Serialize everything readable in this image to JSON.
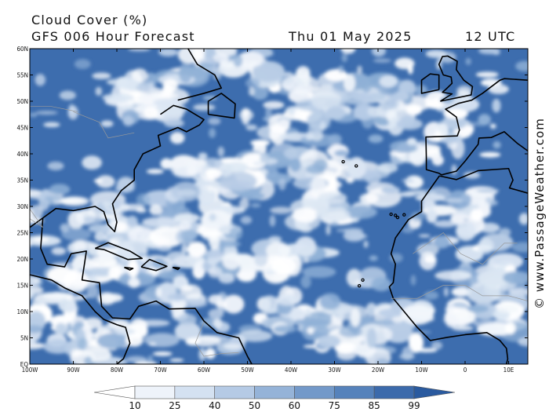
{
  "header": {
    "title": "Cloud Cover (%)",
    "subtitle": "GFS 006 Hour Forecast",
    "date": "Thu 01 May 2025",
    "time": "12 UTC"
  },
  "axes": {
    "lat_labels": [
      "60N",
      "55N",
      "50N",
      "45N",
      "40N",
      "35N",
      "30N",
      "25N",
      "20N",
      "15N",
      "10N",
      "5N",
      "EQ"
    ],
    "lon_labels": [
      "100W",
      "90W",
      "80W",
      "70W",
      "60W",
      "50W",
      "40W",
      "30W",
      "20W",
      "10W",
      "0",
      "10E"
    ]
  },
  "colorbar": {
    "labels": [
      "10",
      "25",
      "40",
      "50",
      "60",
      "75",
      "85",
      "99"
    ]
  },
  "credit": "© www.PassageWeather.com"
}
